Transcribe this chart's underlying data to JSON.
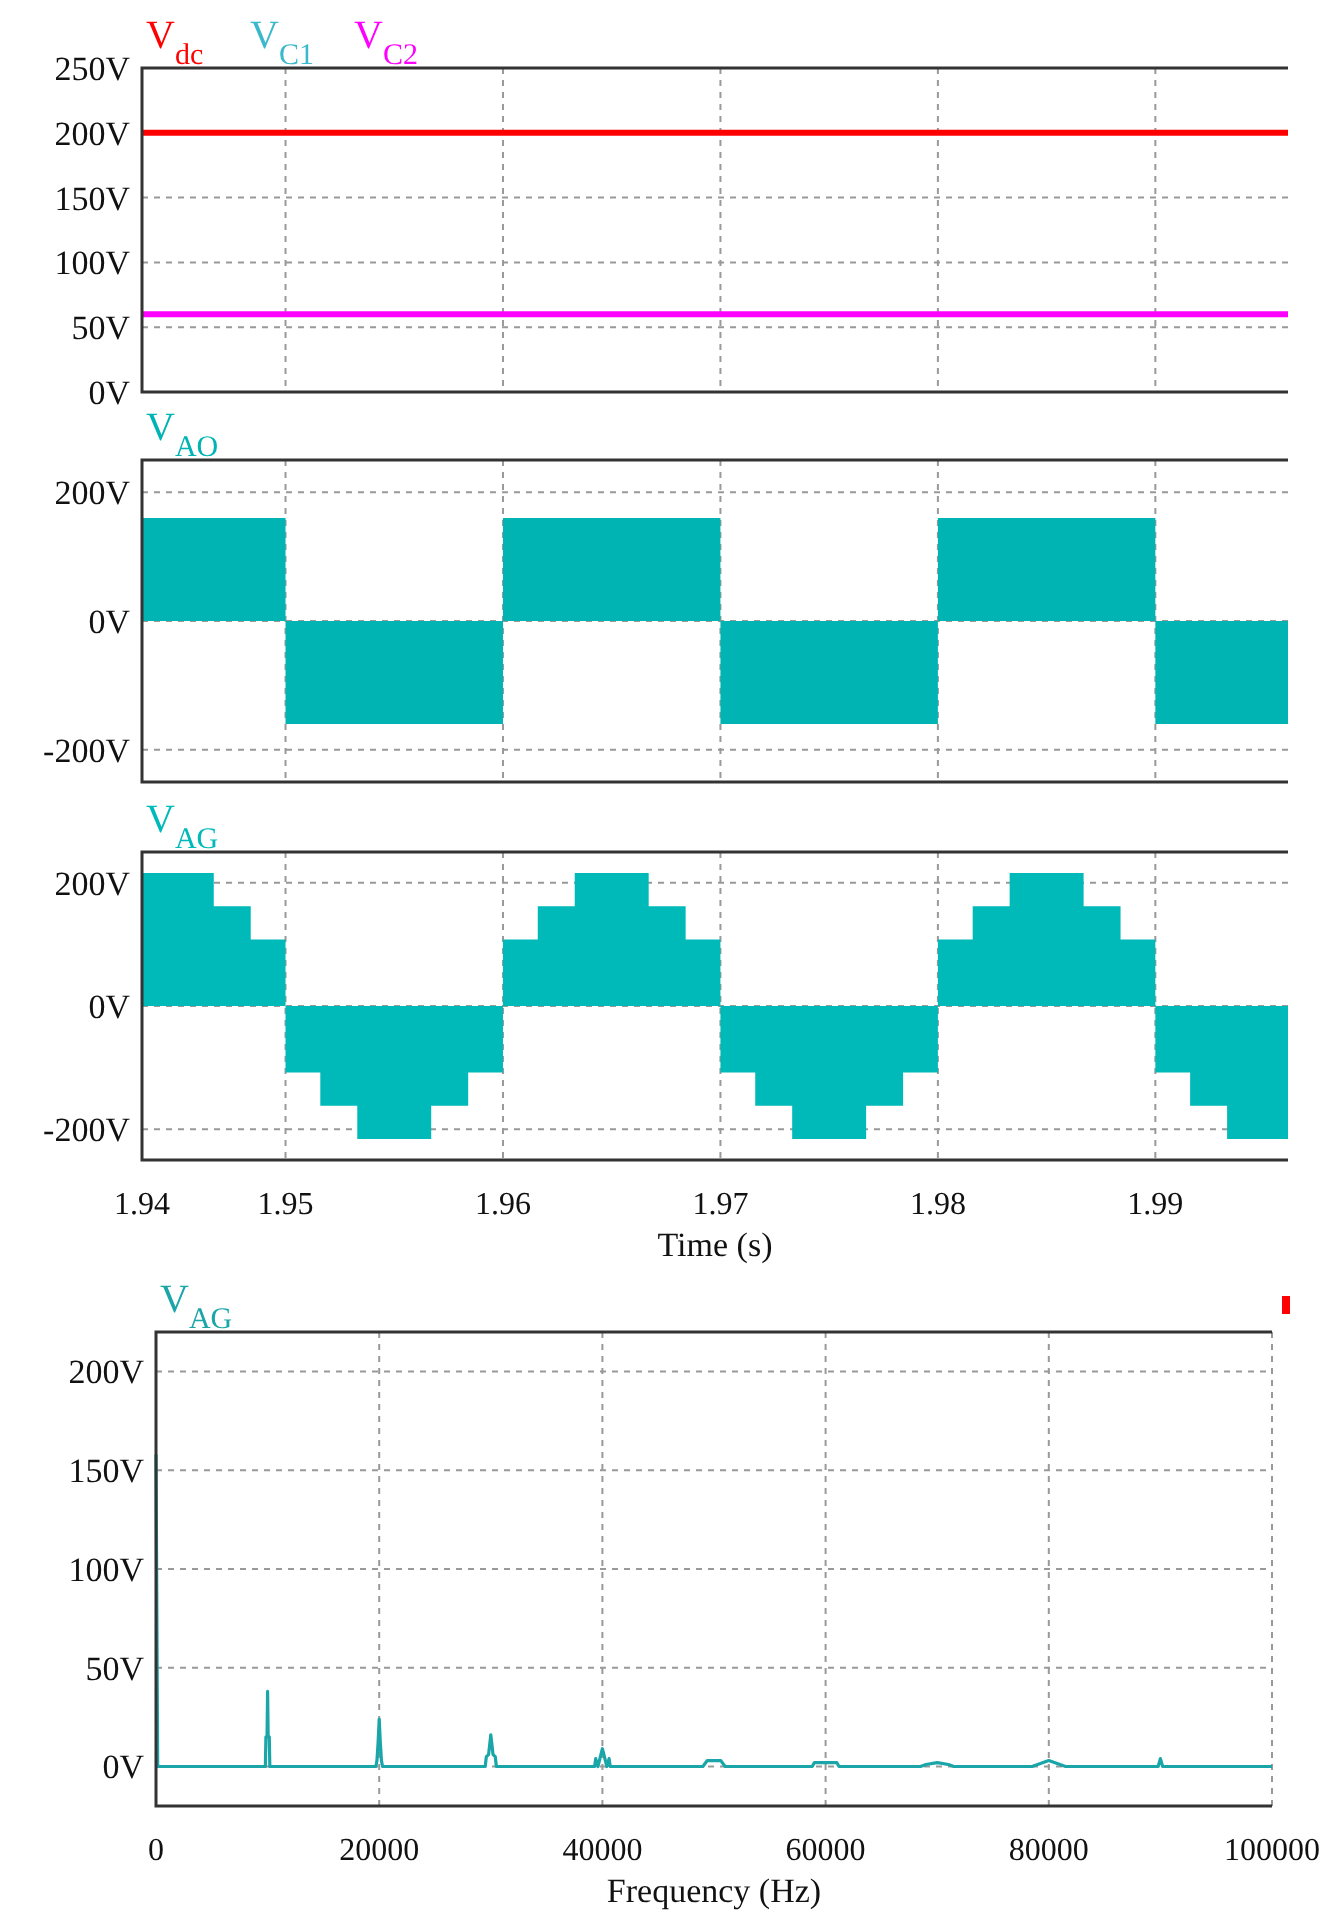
{
  "chart_data": [
    {
      "type": "line",
      "legend": "top left",
      "grid": true,
      "tick_labels": "y",
      "xlim": [
        1.9434,
        1.9961
      ],
      "ylim": [
        0,
        250
      ],
      "xticks": [
        {
          "value": 1.9434,
          "label": null
        },
        {
          "value": 1.95,
          "label": null
        },
        {
          "value": 1.96,
          "label": null
        },
        {
          "value": 1.97,
          "label": null
        },
        {
          "value": 1.98,
          "label": null
        },
        {
          "value": 1.99,
          "label": null
        }
      ],
      "yticks": [
        {
          "value": 0,
          "label": "0V"
        },
        {
          "value": 50,
          "label": "50V"
        },
        {
          "value": 100,
          "label": "100V"
        },
        {
          "value": 150,
          "label": "150V"
        },
        {
          "value": 200,
          "label": "200V"
        },
        {
          "value": 250,
          "label": "250V"
        }
      ],
      "x": [
        1.9434,
        1.9961
      ],
      "series": [
        {
          "name": "V$_{dc}$",
          "color": "#ff0000",
          "values": [
            200,
            200
          ]
        },
        {
          "name": "V$_{C1}$",
          "color": "#3bb8cc",
          "values": [
            null,
            null
          ]
        },
        {
          "name": "V$_{C2}$",
          "color": "#ff00ff",
          "values": [
            60,
            60
          ]
        }
      ]
    },
    {
      "type": "area",
      "legend": "top left",
      "grid": true,
      "tick_labels": "y",
      "xlim": [
        1.9434,
        1.9961
      ],
      "ylim": [
        -250,
        250
      ],
      "xticks": [
        {
          "value": 1.9434,
          "label": null
        },
        {
          "value": 1.95,
          "label": null
        },
        {
          "value": 1.96,
          "label": null
        },
        {
          "value": 1.97,
          "label": null
        },
        {
          "value": 1.98,
          "label": null
        },
        {
          "value": 1.99,
          "label": null
        }
      ],
      "yticks": [
        {
          "value": -200,
          "label": "-200V"
        },
        {
          "value": 0,
          "label": "0V"
        },
        {
          "value": 200,
          "label": "200V"
        }
      ],
      "series": [
        {
          "name": "V$_{AO}$",
          "color": "#00b4b4",
          "x": [
            1.9434,
            1.95,
            1.95,
            1.96,
            1.96,
            1.97,
            1.97,
            1.98,
            1.98,
            1.99,
            1.99,
            1.9961
          ],
          "values": [
            160,
            160,
            -160,
            -160,
            160,
            160,
            -160,
            -160,
            160,
            160,
            -160,
            -160
          ]
        }
      ]
    },
    {
      "type": "area",
      "legend": "top left",
      "grid": true,
      "xlabel": "Time (s)",
      "xlim": [
        1.9434,
        1.9961
      ],
      "ylim": [
        -250,
        250
      ],
      "xticks": [
        {
          "value": 1.9434,
          "label": "1.94"
        },
        1.95,
        1.96,
        1.97,
        1.98,
        1.99
      ],
      "yticks": [
        {
          "value": -200,
          "label": "-200V"
        },
        {
          "value": 0,
          "label": "0V"
        },
        {
          "value": 200,
          "label": "200V"
        }
      ],
      "series": [
        {
          "name": "V$_{AG}$",
          "color": "#00b9b9",
          "x": [
            1.9434,
            1.9467,
            1.9467,
            1.9484,
            1.9484,
            1.95,
            1.95,
            1.9516,
            1.9516,
            1.9533,
            1.9533,
            1.9567,
            1.9567,
            1.9584,
            1.9584,
            1.96,
            1.96,
            1.9616,
            1.9616,
            1.9633,
            1.9633,
            1.9667,
            1.9667,
            1.9684,
            1.9684,
            1.97,
            1.97,
            1.9716,
            1.9716,
            1.9733,
            1.9733,
            1.9767,
            1.9767,
            1.9784,
            1.9784,
            1.98,
            1.98,
            1.9816,
            1.9816,
            1.9833,
            1.9833,
            1.9867,
            1.9867,
            1.9884,
            1.9884,
            1.99,
            1.99,
            1.9916,
            1.9916,
            1.9933,
            1.9933,
            1.9961
          ],
          "values": [
            216,
            216,
            162,
            162,
            108,
            108,
            -108,
            -108,
            -162,
            -162,
            -216,
            -216,
            -162,
            -162,
            -108,
            -108,
            108,
            108,
            162,
            162,
            216,
            216,
            162,
            162,
            108,
            108,
            -108,
            -108,
            -162,
            -162,
            -216,
            -216,
            -162,
            -162,
            -108,
            -108,
            108,
            108,
            162,
            162,
            216,
            216,
            162,
            162,
            108,
            108,
            -108,
            -108,
            -162,
            -162,
            -216,
            -216
          ]
        }
      ]
    },
    {
      "type": "line",
      "legend": "top left",
      "grid": true,
      "xlabel": "Frequency (Hz)",
      "xlim": [
        0,
        100000
      ],
      "ylim": [
        -20,
        220
      ],
      "xticks": [
        0,
        20000,
        40000,
        60000,
        80000,
        100000
      ],
      "yticks": [
        {
          "value": 0,
          "label": "0V"
        },
        {
          "value": 50,
          "label": "50V"
        },
        {
          "value": 100,
          "label": "100V"
        },
        {
          "value": 150,
          "label": "150V"
        },
        {
          "value": 200,
          "label": "200V"
        }
      ],
      "series": [
        {
          "name": "V$_{AG}$",
          "color": "#1aa5a8",
          "x": [
            0,
            150,
            9800,
            9850,
            9950,
            10000,
            10050,
            10150,
            10200,
            19700,
            19800,
            19900,
            20000,
            20100,
            20200,
            20300,
            29500,
            29600,
            29800,
            30000,
            30200,
            30400,
            30500,
            39300,
            39400,
            39600,
            40000,
            40400,
            40600,
            40700,
            49000,
            49400,
            50000,
            50600,
            51000,
            58800,
            59000,
            60000,
            61000,
            61200,
            68500,
            69000,
            70000,
            71000,
            71500,
            78500,
            79000,
            80000,
            81000,
            81500,
            89800,
            90000,
            90200,
            100000
          ],
          "values": [
            158,
            0,
            0,
            15,
            15,
            38,
            15,
            15,
            0,
            0,
            3,
            12,
            24,
            12,
            3,
            0,
            0,
            5,
            6,
            16,
            6,
            5,
            0,
            0,
            4,
            0,
            9,
            0,
            4,
            0,
            0,
            3,
            3,
            3,
            0,
            0,
            2,
            2,
            2,
            0,
            0,
            1,
            2,
            1,
            0,
            0,
            1,
            3,
            1,
            0,
            0,
            4,
            0,
            0
          ]
        }
      ]
    }
  ]
}
